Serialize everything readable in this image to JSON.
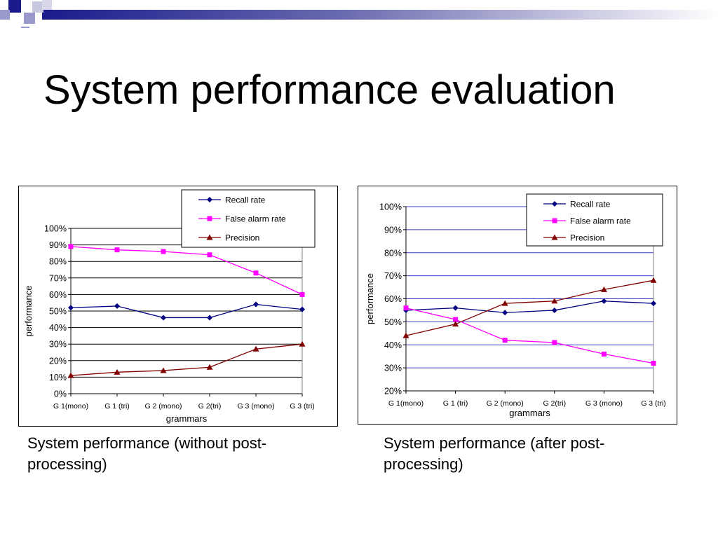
{
  "slide": {
    "title": "System performance evaluation",
    "captions": [
      "System performance (without post-processing)",
      "System performance (after post-processing)"
    ]
  },
  "chart_data": [
    {
      "type": "line",
      "title": "",
      "xlabel": "grammars",
      "ylabel": "performance",
      "categories": [
        "G 1(mono)",
        "G 1 (tri)",
        "G 2 (mono)",
        "G 2(tri)",
        "G 3 (mono)",
        "G 3 (tri)"
      ],
      "ylim": [
        0,
        100
      ],
      "yticks": [
        "0%",
        "10%",
        "20%",
        "30%",
        "40%",
        "50%",
        "60%",
        "70%",
        "80%",
        "90%",
        "100%"
      ],
      "grid": true,
      "legend_position": "top-right",
      "series": [
        {
          "name": "Recall rate",
          "color": "#000080",
          "marker": "diamond",
          "values": [
            52,
            53,
            46,
            46,
            54,
            51
          ]
        },
        {
          "name": "False alarm rate",
          "color": "#ff00ff",
          "marker": "square",
          "values": [
            89,
            87,
            86,
            84,
            73,
            60
          ]
        },
        {
          "name": "Precision",
          "color": "#800000",
          "marker": "triangle",
          "values": [
            11,
            13,
            14,
            16,
            27,
            30
          ]
        }
      ]
    },
    {
      "type": "line",
      "title": "",
      "xlabel": "grammars",
      "ylabel": "performance",
      "categories": [
        "G 1(mono)",
        "G 1 (tri)",
        "G 2 (mono)",
        "G 2(tri)",
        "G 3 (mono)",
        "G 3 (tri)"
      ],
      "ylim": [
        20,
        100
      ],
      "yticks": [
        "20%",
        "30%",
        "40%",
        "50%",
        "60%",
        "70%",
        "80%",
        "90%",
        "100%"
      ],
      "grid": true,
      "legend_position": "top-right",
      "series": [
        {
          "name": "Recall rate",
          "color": "#000080",
          "marker": "diamond",
          "values": [
            55,
            56,
            54,
            55,
            59,
            58
          ]
        },
        {
          "name": "False alarm rate",
          "color": "#ff00ff",
          "marker": "square",
          "values": [
            56,
            51,
            42,
            41,
            36,
            32
          ]
        },
        {
          "name": "Precision",
          "color": "#800000",
          "marker": "triangle",
          "values": [
            44,
            49,
            58,
            59,
            64,
            68
          ]
        }
      ]
    }
  ]
}
